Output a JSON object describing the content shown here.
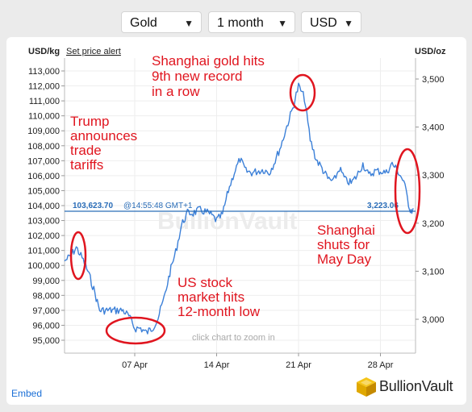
{
  "controls": {
    "metal": "Gold",
    "period": "1 month",
    "currency": "USD"
  },
  "header": {
    "left_unit": "USD/kg",
    "set_alert": "Set price alert",
    "right_unit": "USD/oz"
  },
  "chart_data": {
    "type": "line",
    "left_axis": {
      "label": "USD/kg",
      "ticks": [
        95000,
        96000,
        97000,
        98000,
        99000,
        100000,
        101000,
        102000,
        103000,
        104000,
        105000,
        106000,
        107000,
        108000,
        109000,
        110000,
        111000,
        112000,
        113000
      ]
    },
    "right_axis": {
      "label": "USD/oz",
      "ticks": [
        3000,
        3100,
        3200,
        3300,
        3400,
        3500
      ]
    },
    "x_ticks": [
      "07 Apr",
      "14 Apr",
      "21 Apr",
      "28 Apr"
    ],
    "current_price": {
      "kg": "103,623.70",
      "oz": "3,223.06",
      "time": "@14:55:48 GMT+1"
    },
    "watermark": "BullionVault",
    "zoom_hint": "click chart to zoom in",
    "series": [
      {
        "x": [
          0.0,
          0.5,
          1.0,
          1.5,
          2.0,
          2.5,
          3.0,
          3.5,
          4.0,
          4.5,
          5.0,
          5.5,
          6.0,
          6.5,
          7.0,
          7.5,
          8.0,
          8.5,
          9.0,
          9.5,
          10.0,
          10.5,
          11.0,
          11.5,
          12.0,
          12.5,
          13.0,
          13.5,
          14.0,
          14.5,
          15.0,
          15.5,
          16.0,
          16.5,
          17.0,
          17.5,
          18.0,
          18.5,
          19.0,
          19.5,
          20.0,
          20.5,
          21.0,
          21.5,
          22.0,
          22.5,
          23.0,
          23.5,
          24.0,
          24.5,
          25.0,
          25.5,
          26.0,
          26.5,
          27.0,
          27.5,
          28.0,
          28.5,
          29.0,
          29.5,
          29.8
        ],
        "y": [
          100300,
          100600,
          101200,
          100500,
          99600,
          98400,
          97000,
          97000,
          97000,
          97000,
          97000,
          96600,
          95800,
          95800,
          95500,
          95800,
          96500,
          97800,
          99500,
          100900,
          102700,
          103500,
          103500,
          103700,
          103600,
          103400,
          103000,
          103400,
          105000,
          106200,
          107100,
          106300,
          106200,
          106300,
          106400,
          106200,
          107000,
          108000,
          109300,
          110500,
          112000,
          111200,
          108400,
          107100,
          106500,
          105800,
          105600,
          106500,
          105700,
          105500,
          106000,
          106800,
          106000,
          106300,
          106300,
          106200,
          106800,
          106300,
          105600,
          103800,
          103600
        ]
      }
    ]
  },
  "annotations": {
    "trump": [
      "Trump",
      "announces",
      "trade",
      "tariffs"
    ],
    "shanghai_record": [
      "Shanghai gold hits",
      "9th new record",
      "in a row"
    ],
    "us_stock": [
      "US stock",
      "market hits",
      "12-month low"
    ],
    "mayday": [
      "Shanghai",
      "shuts for",
      "May Day"
    ]
  },
  "footer": {
    "embed": "Embed",
    "logo_text": "BullionVault"
  },
  "colors": {
    "line": "#3c80d8",
    "annotation": "#e0151f",
    "current_line": "#2a6db8"
  }
}
